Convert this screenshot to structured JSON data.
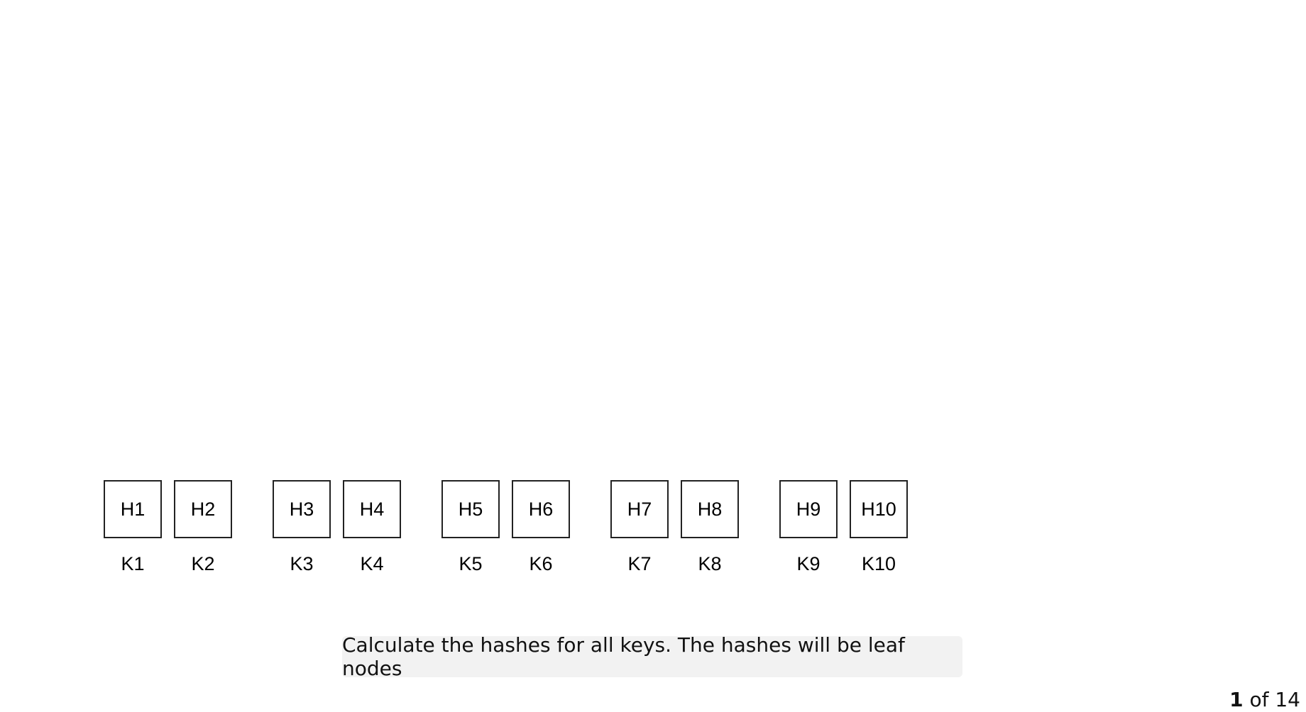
{
  "diagram": {
    "leaves": [
      {
        "hash": "H1",
        "key": "K1"
      },
      {
        "hash": "H2",
        "key": "K2"
      },
      {
        "hash": "H3",
        "key": "K3"
      },
      {
        "hash": "H4",
        "key": "K4"
      },
      {
        "hash": "H5",
        "key": "K5"
      },
      {
        "hash": "H6",
        "key": "K6"
      },
      {
        "hash": "H7",
        "key": "K7"
      },
      {
        "hash": "H8",
        "key": "K8"
      },
      {
        "hash": "H9",
        "key": "K9"
      },
      {
        "hash": "H10",
        "key": "K10"
      }
    ]
  },
  "caption": "Calculate the hashes for all keys. The hashes will be leaf nodes",
  "pager": {
    "current": "1",
    "separator": "of",
    "total": "14"
  }
}
